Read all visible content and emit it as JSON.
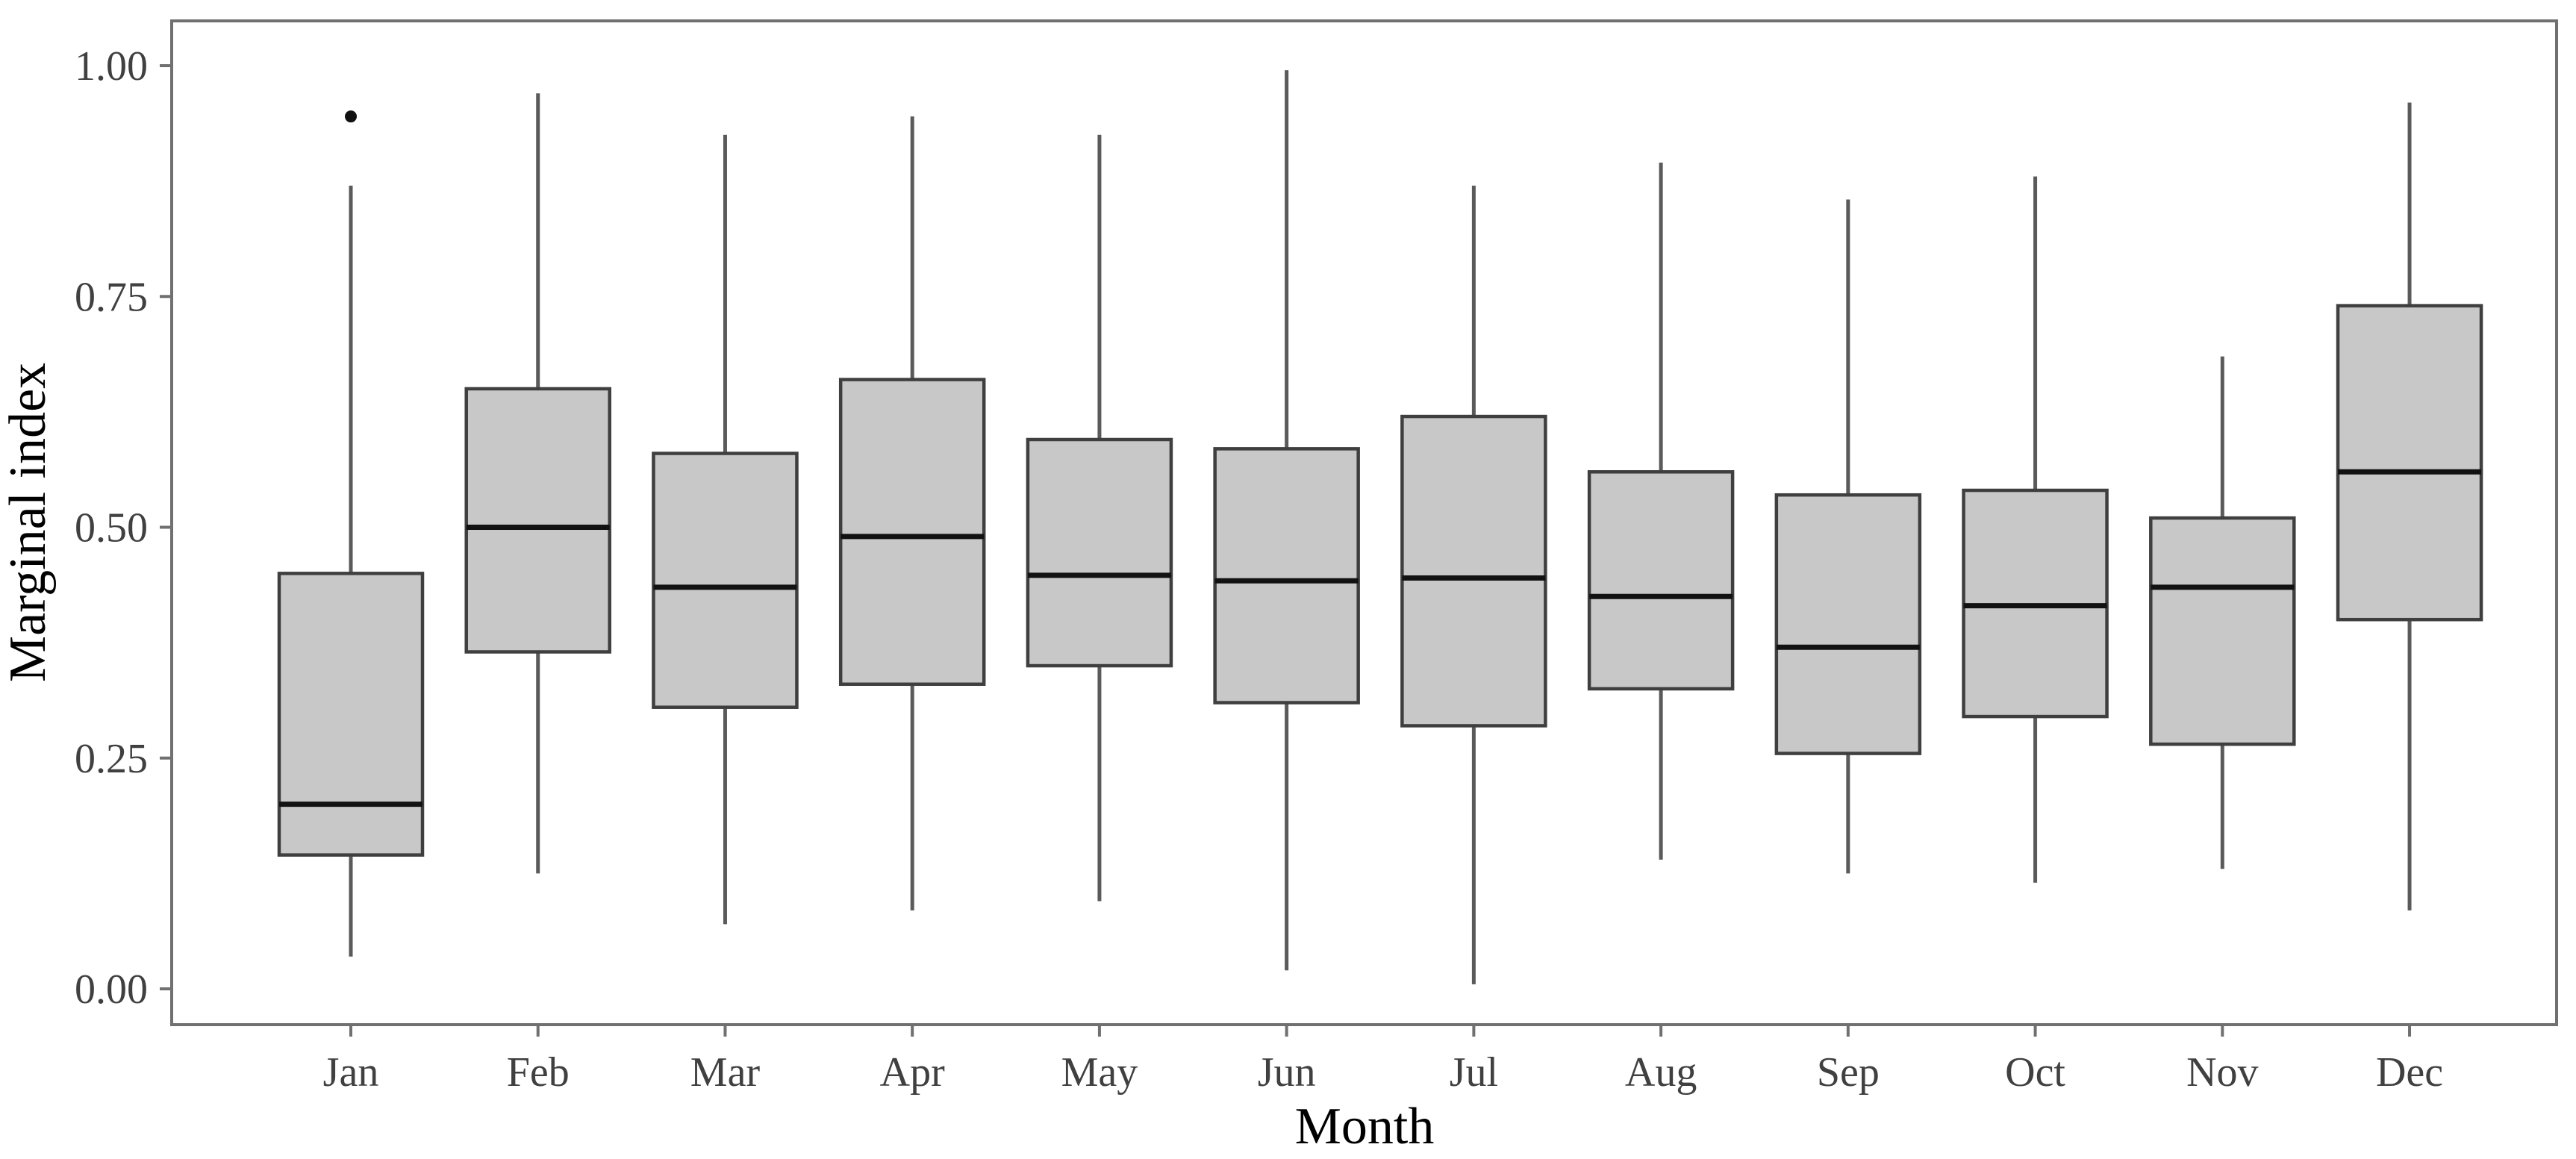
{
  "chart_data": {
    "type": "boxplot",
    "title": "",
    "xlabel": "Month",
    "ylabel": "Marginal index",
    "ylim": [
      0,
      1
    ],
    "y_tick_labels": [
      "0.00",
      "0.25",
      "0.50",
      "0.75",
      "1.00"
    ],
    "grid": false,
    "legend": "none",
    "categories": [
      "Jan",
      "Feb",
      "Mar",
      "Apr",
      "May",
      "Jun",
      "Jul",
      "Aug",
      "Sep",
      "Oct",
      "Nov",
      "Dec"
    ],
    "boxes": [
      {
        "label": "Jan",
        "whisker_low": 0.035,
        "q1": 0.145,
        "median": 0.2,
        "q3": 0.45,
        "whisker_high": 0.87,
        "outliers": [
          0.945
        ]
      },
      {
        "label": "Feb",
        "whisker_low": 0.125,
        "q1": 0.365,
        "median": 0.5,
        "q3": 0.65,
        "whisker_high": 0.97,
        "outliers": []
      },
      {
        "label": "Mar",
        "whisker_low": 0.07,
        "q1": 0.305,
        "median": 0.435,
        "q3": 0.58,
        "whisker_high": 0.925,
        "outliers": []
      },
      {
        "label": "Apr",
        "whisker_low": 0.085,
        "q1": 0.33,
        "median": 0.49,
        "q3": 0.66,
        "whisker_high": 0.945,
        "outliers": []
      },
      {
        "label": "May",
        "whisker_low": 0.095,
        "q1": 0.35,
        "median": 0.448,
        "q3": 0.595,
        "whisker_high": 0.925,
        "outliers": []
      },
      {
        "label": "Jun",
        "whisker_low": 0.02,
        "q1": 0.31,
        "median": 0.442,
        "q3": 0.585,
        "whisker_high": 0.995,
        "outliers": []
      },
      {
        "label": "Jul",
        "whisker_low": 0.005,
        "q1": 0.285,
        "median": 0.445,
        "q3": 0.62,
        "whisker_high": 0.87,
        "outliers": []
      },
      {
        "label": "Aug",
        "whisker_low": 0.14,
        "q1": 0.325,
        "median": 0.425,
        "q3": 0.56,
        "whisker_high": 0.895,
        "outliers": []
      },
      {
        "label": "Sep",
        "whisker_low": 0.125,
        "q1": 0.255,
        "median": 0.37,
        "q3": 0.535,
        "whisker_high": 0.855,
        "outliers": []
      },
      {
        "label": "Oct",
        "whisker_low": 0.115,
        "q1": 0.295,
        "median": 0.415,
        "q3": 0.54,
        "whisker_high": 0.88,
        "outliers": []
      },
      {
        "label": "Nov",
        "whisker_low": 0.13,
        "q1": 0.265,
        "median": 0.435,
        "q3": 0.51,
        "whisker_high": 0.685,
        "outliers": []
      },
      {
        "label": "Dec",
        "whisker_low": 0.085,
        "q1": 0.4,
        "median": 0.56,
        "q3": 0.74,
        "whisker_high": 0.96,
        "outliers": []
      }
    ],
    "style": {
      "box_fill": "#c8c8c8",
      "box_border": "#3f3f3f",
      "median_color": "#121212",
      "whisker_color": "#5a5a5a",
      "outlier_color": "#111111",
      "panel_border": "#707070",
      "tick_color": "#707070",
      "tick_label_color": "#404040",
      "axis_title_color": "#000000",
      "background": "#ffffff"
    }
  }
}
